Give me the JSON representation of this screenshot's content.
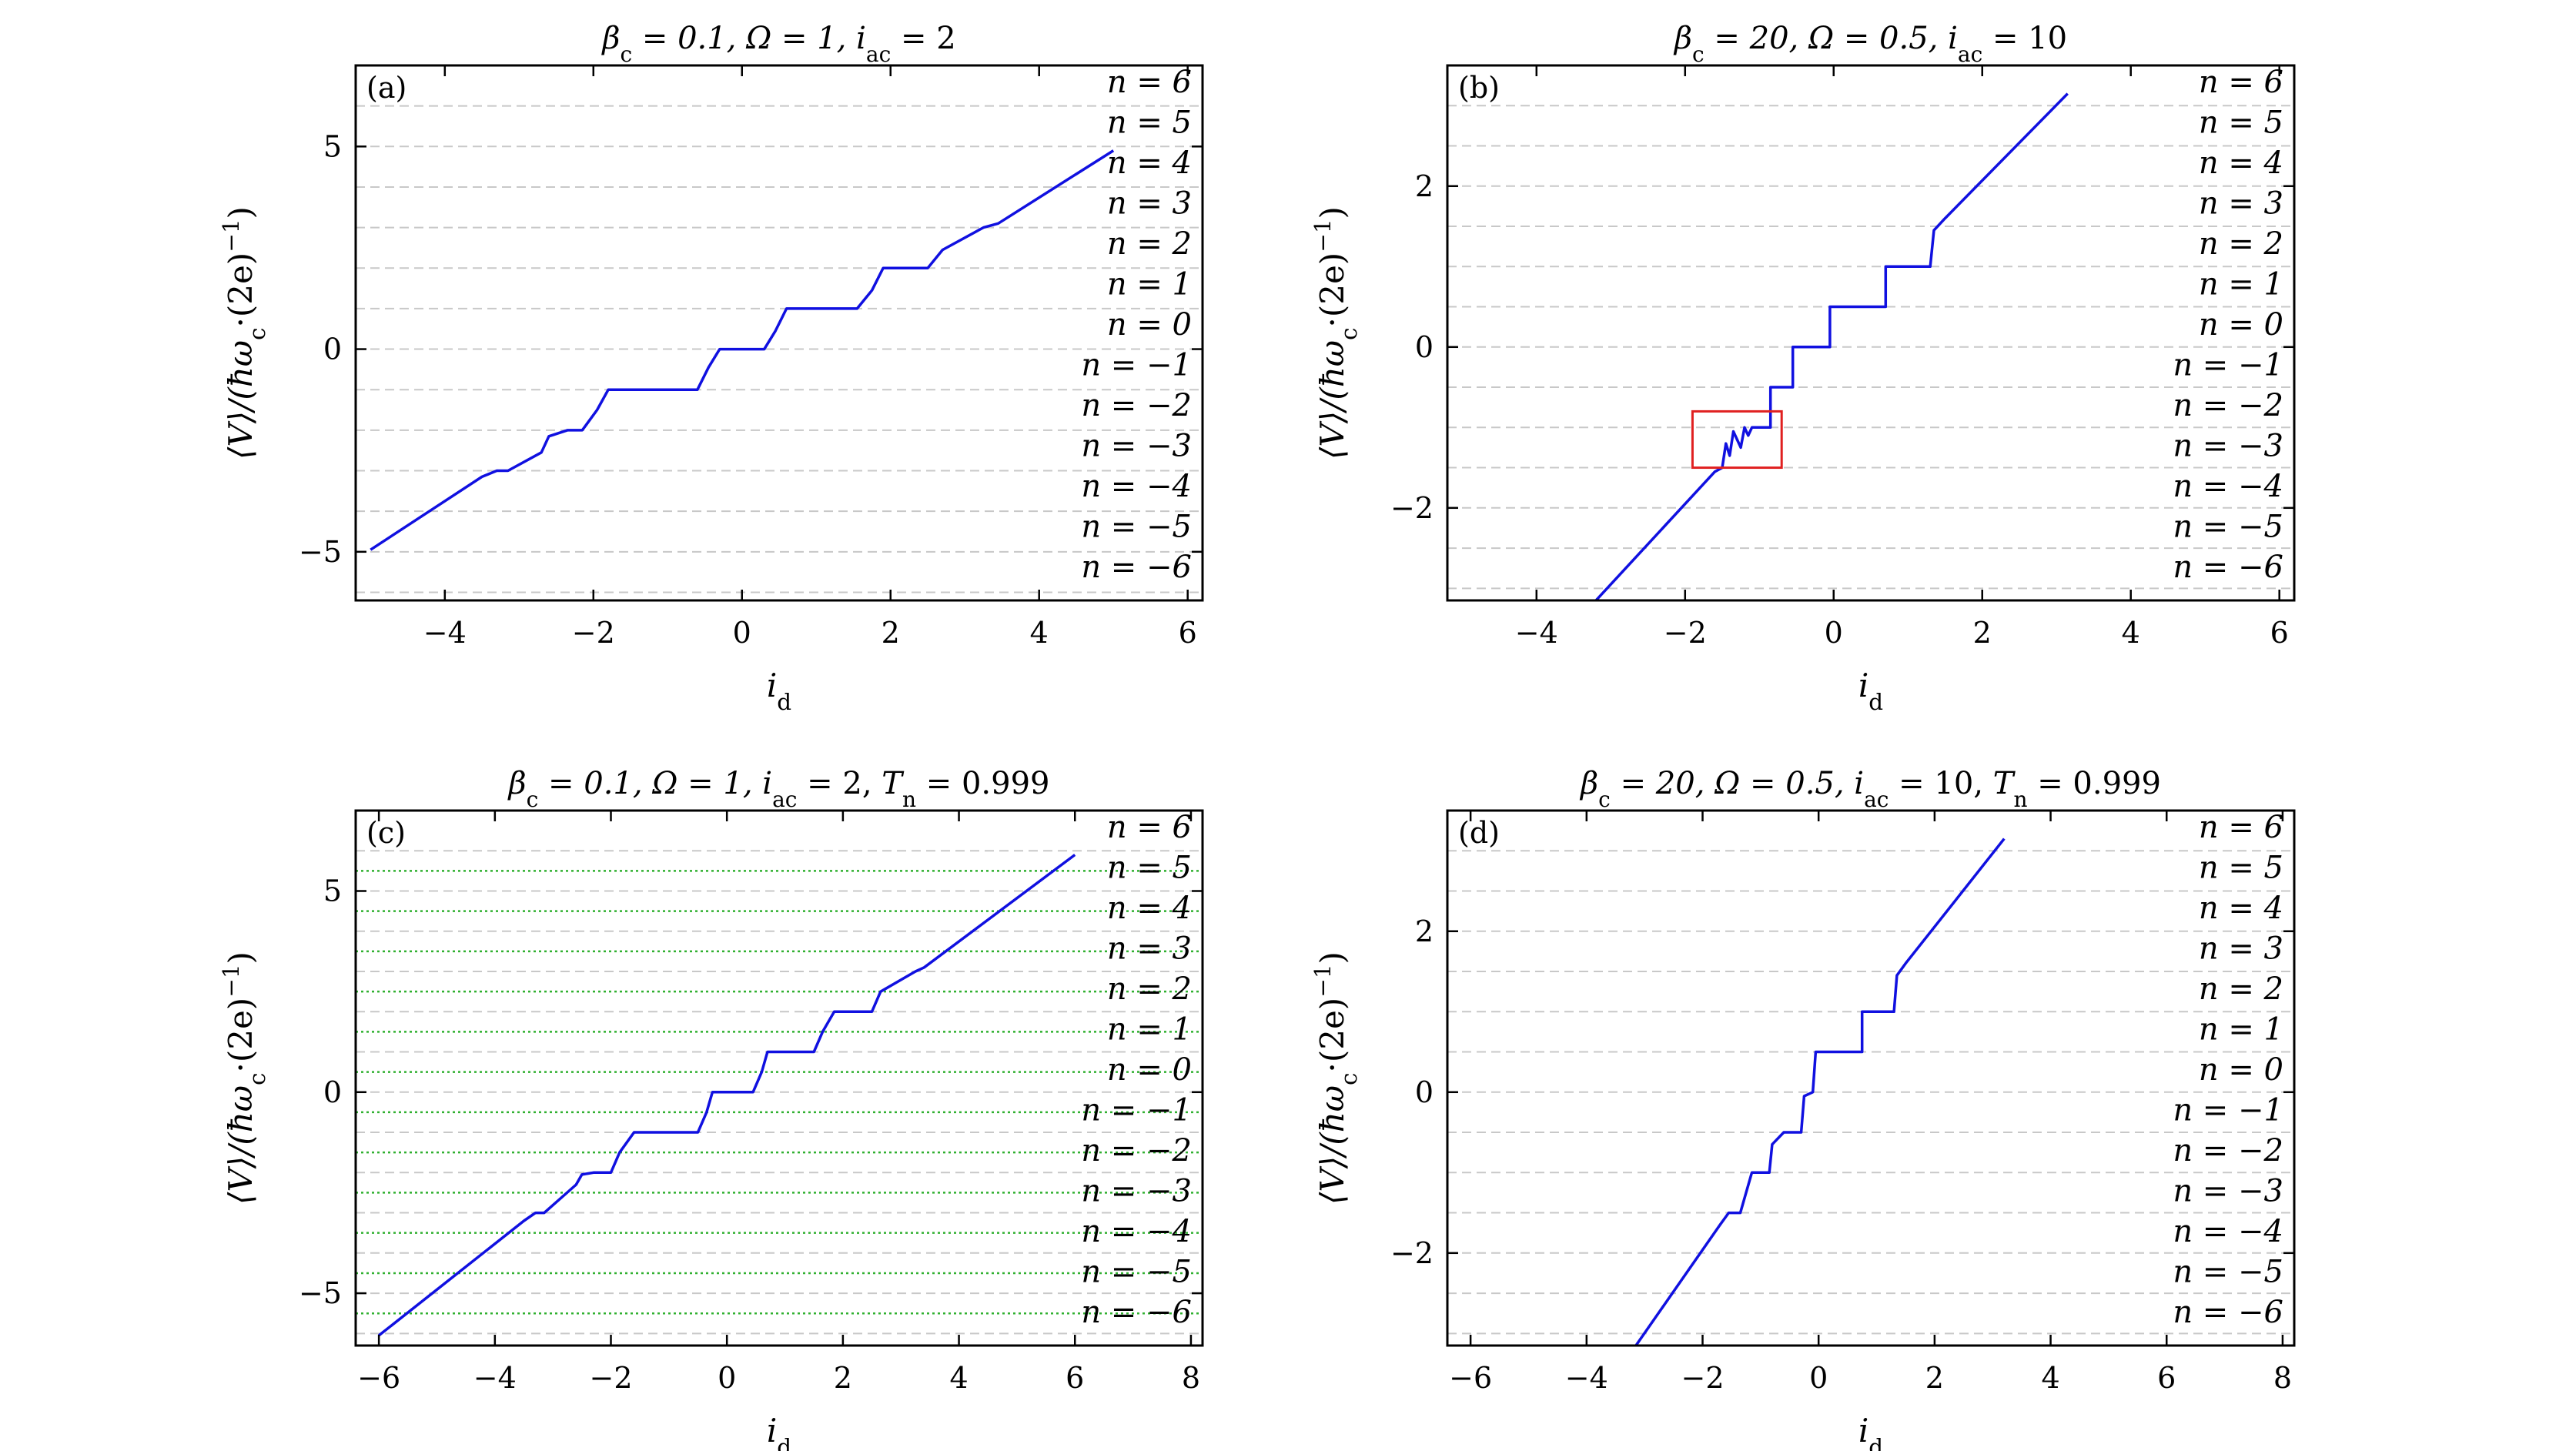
{
  "chart_data": [
    {
      "type": "line",
      "panel_label": "(a)",
      "title": "βc = 0.1, Ω = 1, iac = 2",
      "xlabel": "id",
      "ylabel": "⟨V⟩/(ħωc·(2e)−1)",
      "xlim": [
        -5.2,
        6.2
      ],
      "ylim": [
        -6.2,
        7.0
      ],
      "xticks": [
        -4,
        -2,
        0,
        2,
        4,
        6
      ],
      "yticks": [
        -5,
        0,
        5
      ],
      "steps": {
        "levels": [
          -6,
          -5,
          -4,
          -3,
          -2,
          -1,
          0,
          1,
          2,
          3,
          4,
          5,
          6
        ],
        "scale": 1,
        "line_color": "#c8c8c8"
      },
      "sub_levels": [],
      "level_labels": [
        "n = 6",
        "n = 5",
        "n = 4",
        "n = 3",
        "n = 2",
        "n = 1",
        "n = 0",
        "n = −1",
        "n = −2",
        "n = −3",
        "n = −4",
        "n = −5",
        "n = −6"
      ],
      "series": [
        {
          "color": "#1010e0",
          "x": [
            -5.0,
            -3.5,
            -3.3,
            -3.15,
            -2.7,
            -2.6,
            -2.35,
            -2.15,
            -1.95,
            -1.8,
            -0.6,
            -0.45,
            -0.3,
            0.3,
            0.45,
            0.6,
            1.55,
            1.75,
            1.9,
            2.5,
            2.7,
            3.25,
            3.45,
            5.0
          ],
          "y": [
            -4.95,
            -3.15,
            -3.0,
            -3.0,
            -2.55,
            -2.15,
            -2.0,
            -2.0,
            -1.5,
            -1.0,
            -1.0,
            -0.45,
            0.0,
            0.0,
            0.45,
            1.0,
            1.0,
            1.45,
            2.0,
            2.0,
            2.45,
            3.0,
            3.1,
            4.9
          ]
        }
      ],
      "annotation_box": null
    },
    {
      "type": "line",
      "panel_label": "(b)",
      "title": "βc = 20, Ω = 0.5, iac = 10",
      "xlabel": "id",
      "ylabel": "⟨V⟩/(ħωc·(2e)−1)",
      "xlim": [
        -5.2,
        6.2
      ],
      "ylim": [
        -3.15,
        3.5
      ],
      "xticks": [
        -4,
        -2,
        0,
        2,
        4,
        6
      ],
      "yticks": [
        -2,
        0,
        2
      ],
      "steps": {
        "levels": [
          -6,
          -5,
          -4,
          -3,
          -2,
          -1,
          0,
          1,
          2,
          3,
          4,
          5,
          6
        ],
        "scale": 0.5,
        "line_color": "#c8c8c8"
      },
      "sub_levels": [],
      "level_labels": [
        "n = 6",
        "n = 5",
        "n = 4",
        "n = 3",
        "n = 2",
        "n = 1",
        "n = 0",
        "n = −1",
        "n = −2",
        "n = −3",
        "n = −4",
        "n = −5",
        "n = −6"
      ],
      "series": [
        {
          "color": "#1010e0",
          "x": [
            -3.2,
            -1.6,
            -1.5,
            -1.45,
            -1.4,
            -1.35,
            -1.25,
            -1.2,
            -1.15,
            -1.1,
            -0.85,
            -0.85,
            -0.55,
            -0.55,
            -0.05,
            -0.05,
            0.7,
            0.7,
            1.3,
            1.35,
            1.5,
            3.15
          ],
          "y": [
            -3.15,
            -1.55,
            -1.5,
            -1.2,
            -1.35,
            -1.05,
            -1.25,
            -1.0,
            -1.1,
            -1.0,
            -1.0,
            -0.5,
            -0.5,
            0.0,
            0.0,
            0.5,
            0.5,
            1.0,
            1.0,
            1.45,
            1.6,
            3.15
          ]
        }
      ],
      "annotation_box": {
        "x": [
          -1.9,
          -0.7
        ],
        "y": [
          -1.5,
          -0.8
        ],
        "color": "#e02020"
      }
    },
    {
      "type": "line",
      "panel_label": "(c)",
      "title": "βc = 0.1, Ω = 1, iac = 2,  Tn = 0.999",
      "xlabel": "id",
      "ylabel": "⟨V⟩/(ħωc·(2e)−1)",
      "xlim": [
        -6.4,
        8.2
      ],
      "ylim": [
        -6.3,
        7.0
      ],
      "xticks": [
        -6,
        -4,
        -2,
        0,
        2,
        4,
        6,
        8
      ],
      "yticks": [
        -5,
        0,
        5
      ],
      "steps": {
        "levels": [
          -6,
          -5,
          -4,
          -3,
          -2,
          -1,
          0,
          1,
          2,
          3,
          4,
          5,
          6
        ],
        "scale": 1,
        "line_color": "#c8c8c8"
      },
      "sub_levels": [
        -5.5,
        -4.5,
        -3.5,
        -2.5,
        -1.5,
        -0.5,
        0.5,
        1.5,
        2.5,
        3.5,
        4.5,
        5.5
      ],
      "sub_level_color": "#30b030",
      "level_labels": [
        "n = 6",
        "n = 5",
        "n = 4",
        "n = 3",
        "n = 2",
        "n = 1",
        "n = 0",
        "n = −1",
        "n = −2",
        "n = −3",
        "n = −4",
        "n = −5",
        "n = −6"
      ],
      "series": [
        {
          "color": "#1010e0",
          "x": [
            -6.0,
            -3.5,
            -3.3,
            -3.15,
            -2.6,
            -2.5,
            -2.3,
            -2.0,
            -1.85,
            -1.6,
            -0.5,
            -0.35,
            -0.25,
            0.45,
            0.6,
            0.7,
            1.5,
            1.65,
            1.85,
            2.5,
            2.65,
            3.25,
            3.4,
            6.0
          ],
          "y": [
            -6.05,
            -3.2,
            -3.0,
            -3.0,
            -2.3,
            -2.05,
            -2.0,
            -2.0,
            -1.5,
            -1.0,
            -1.0,
            -0.5,
            0.0,
            0.0,
            0.5,
            1.0,
            1.0,
            1.5,
            2.0,
            2.0,
            2.5,
            3.0,
            3.1,
            5.9
          ]
        }
      ],
      "annotation_box": null
    },
    {
      "type": "line",
      "panel_label": "(d)",
      "title": "βc = 20, Ω = 0.5, iac = 10,  Tn = 0.999",
      "xlabel": "id",
      "ylabel": "⟨V⟩/(ħωc·(2e)−1)",
      "xlim": [
        -6.4,
        8.2
      ],
      "ylim": [
        -3.15,
        3.5
      ],
      "xticks": [
        -6,
        -4,
        -2,
        0,
        2,
        4,
        6,
        8
      ],
      "yticks": [
        -2,
        0,
        2
      ],
      "steps": {
        "levels": [
          -6,
          -5,
          -4,
          -3,
          -2,
          -1,
          0,
          1,
          2,
          3,
          4,
          5,
          6
        ],
        "scale": 0.5,
        "line_color": "#c8c8c8"
      },
      "sub_levels": [],
      "level_labels": [
        "n = 6",
        "n = 5",
        "n = 4",
        "n = 3",
        "n = 2",
        "n = 1",
        "n = 0",
        "n = −1",
        "n = −2",
        "n = −3",
        "n = −4",
        "n = −5",
        "n = −6"
      ],
      "series": [
        {
          "color": "#1010e0",
          "x": [
            -3.15,
            -1.7,
            -1.55,
            -1.35,
            -1.15,
            -1.05,
            -0.85,
            -0.8,
            -0.6,
            -0.5,
            -0.3,
            -0.25,
            -0.1,
            -0.05,
            0.75,
            0.75,
            1.3,
            1.35,
            1.5,
            3.2
          ],
          "y": [
            -3.15,
            -1.65,
            -1.5,
            -1.5,
            -1.0,
            -1.0,
            -1.0,
            -0.65,
            -0.5,
            -0.5,
            -0.5,
            -0.05,
            0.0,
            0.5,
            0.5,
            1.0,
            1.0,
            1.45,
            1.6,
            3.15
          ]
        }
      ],
      "annotation_box": null
    }
  ]
}
